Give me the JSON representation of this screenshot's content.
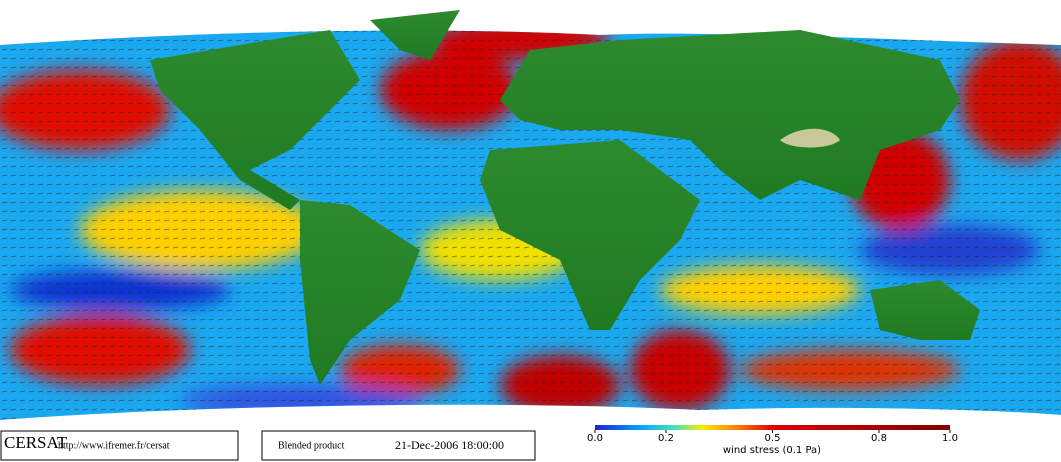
{
  "footer": {
    "logo": "CERSAT",
    "url": "http://www.ifremer.fr/cersat",
    "product": "Blended product",
    "date": "21-Dec-2006 18:00:00"
  },
  "colorbar": {
    "lim": [
      0,
      1
    ],
    "ticks": [
      {
        "value": 0,
        "label": "0.0"
      },
      0.2,
      0.5,
      0.8,
      {
        "value": 1,
        "label": "1.0"
      }
    ],
    "label": "wind stress (0.1 Pa)"
  }
}
